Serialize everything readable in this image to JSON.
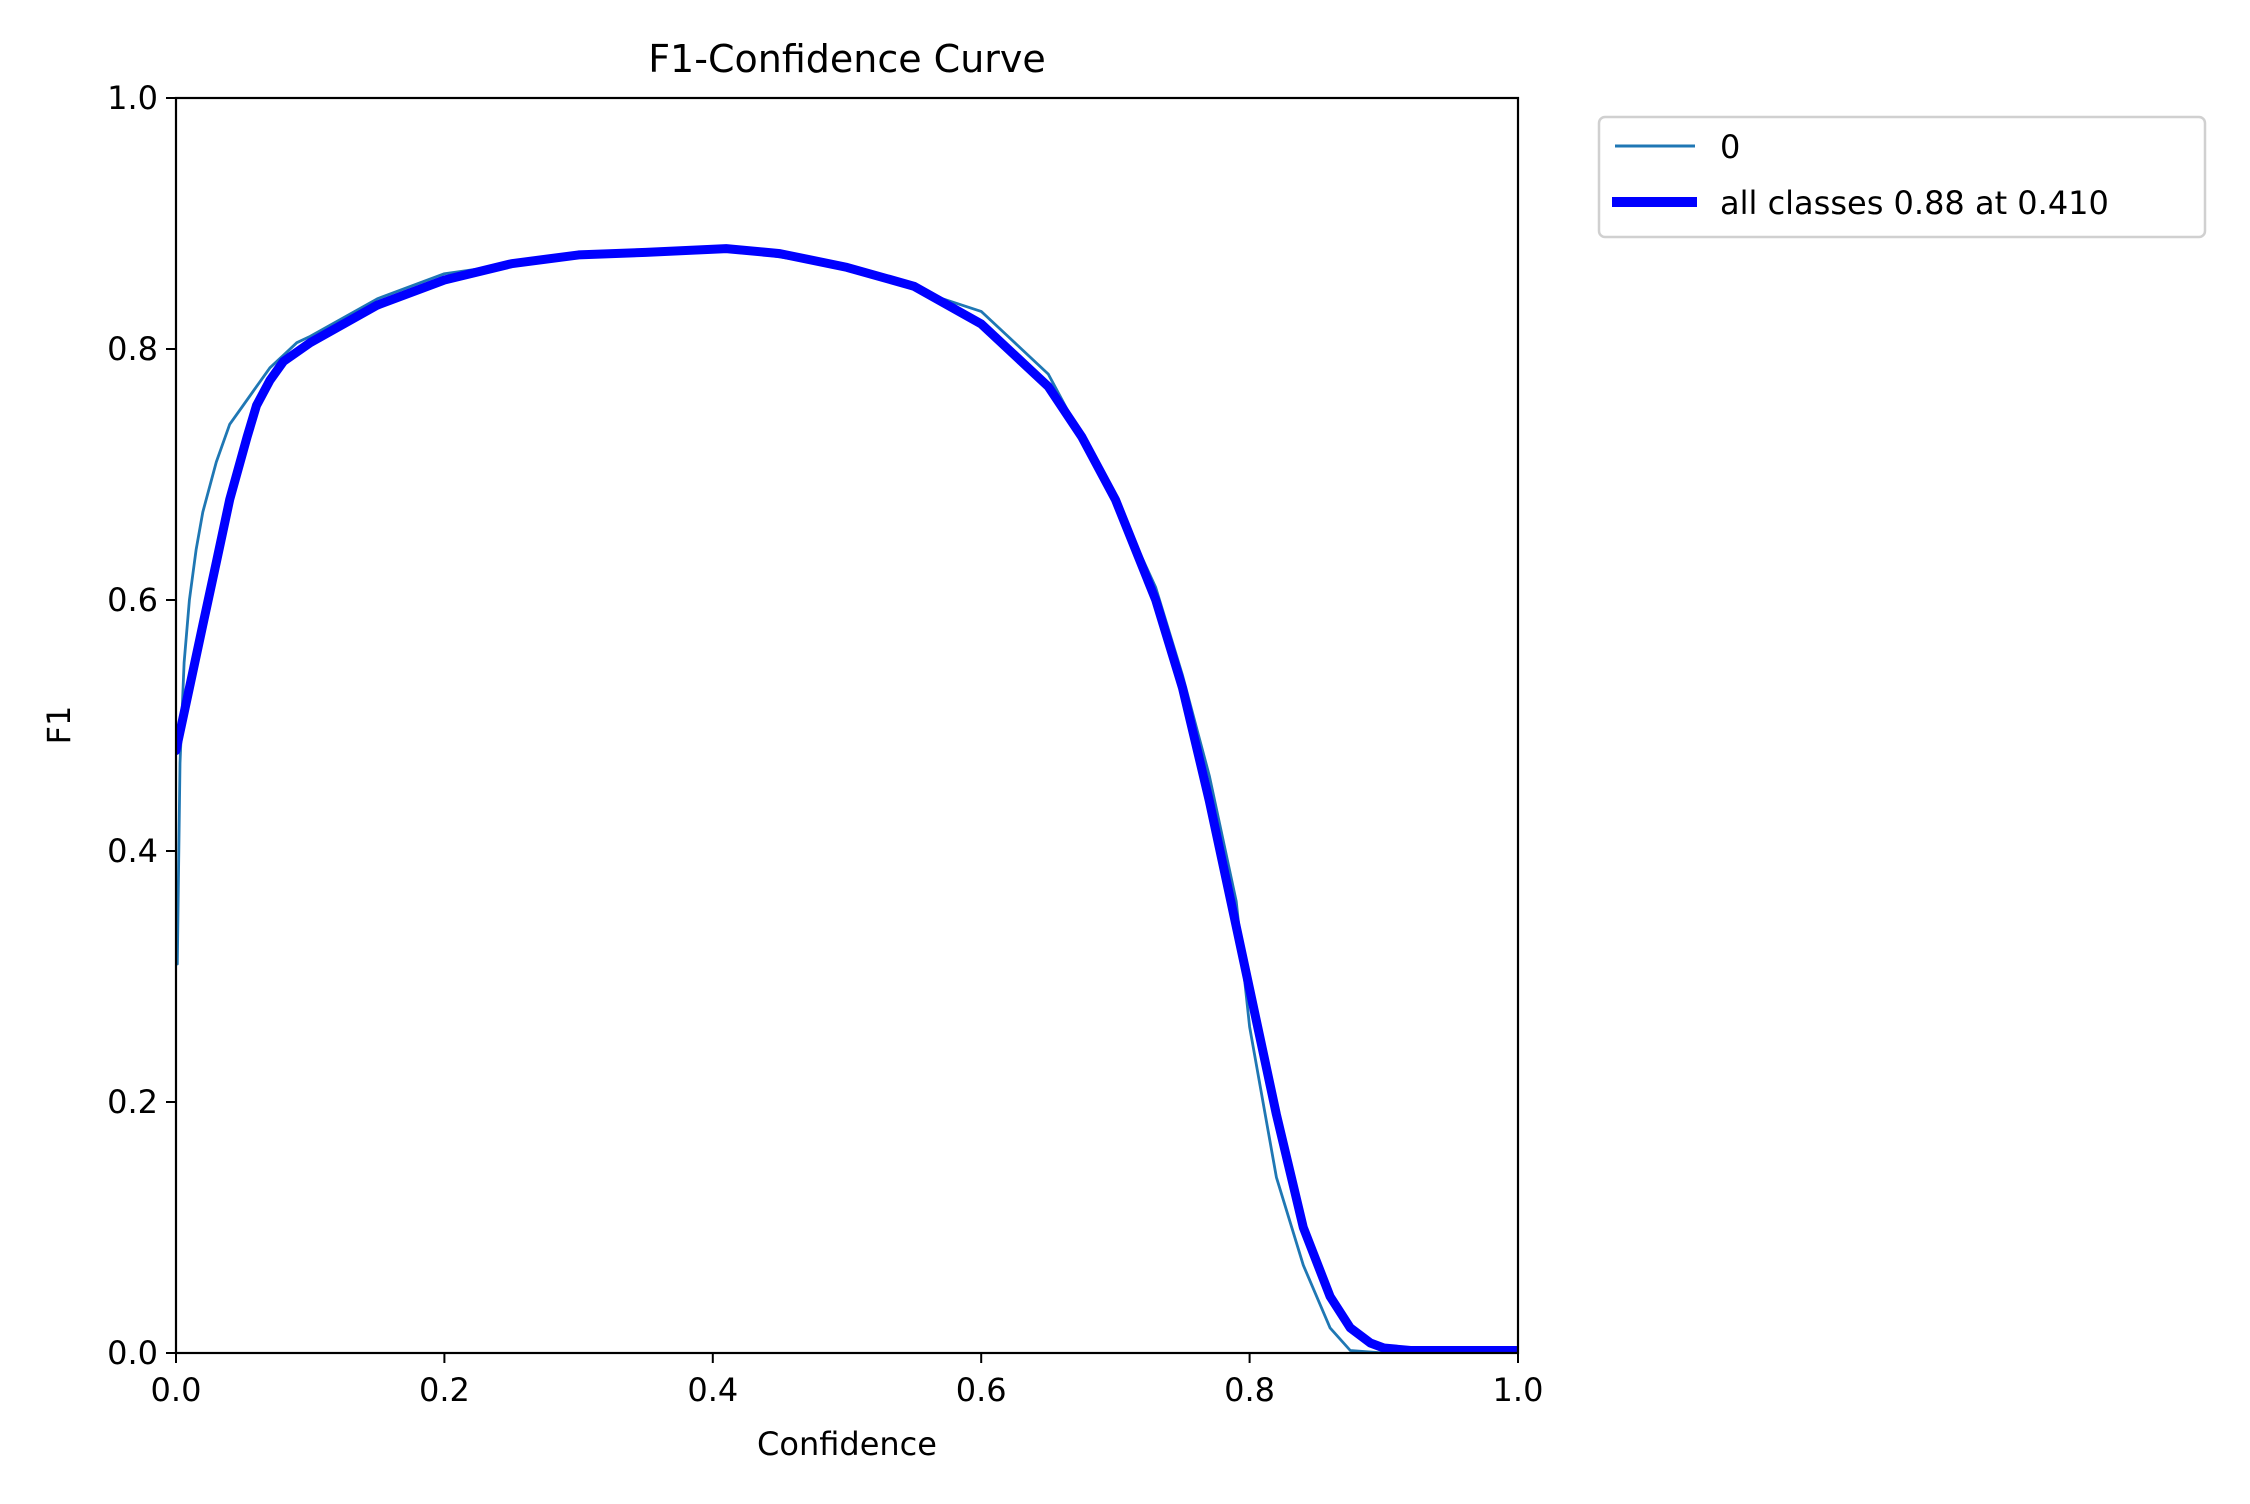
{
  "chart_data": {
    "type": "line",
    "title": "F1-Confidence Curve",
    "xlabel": "Confidence",
    "ylabel": "F1",
    "xlim": [
      0.0,
      1.0
    ],
    "ylim": [
      0.0,
      1.0
    ],
    "xticks": [
      "0.0",
      "0.2",
      "0.4",
      "0.6",
      "0.8",
      "1.0"
    ],
    "yticks": [
      "0.0",
      "0.2",
      "0.4",
      "0.6",
      "0.8",
      "1.0"
    ],
    "grid": false,
    "legend_position": "outside upper right",
    "series": [
      {
        "name": "0",
        "color": "#1f77b4",
        "linewidth": "thin",
        "x": [
          0.001,
          0.003,
          0.006,
          0.01,
          0.015,
          0.02,
          0.03,
          0.04,
          0.05,
          0.06,
          0.07,
          0.08,
          0.09,
          0.1,
          0.15,
          0.2,
          0.3,
          0.41,
          0.5,
          0.6,
          0.62,
          0.65,
          0.675,
          0.7,
          0.73,
          0.75,
          0.77,
          0.79,
          0.8,
          0.82,
          0.84,
          0.86,
          0.875,
          0.9,
          1.0
        ],
        "y": [
          0.31,
          0.47,
          0.55,
          0.6,
          0.64,
          0.67,
          0.71,
          0.74,
          0.755,
          0.77,
          0.785,
          0.795,
          0.805,
          0.81,
          0.84,
          0.86,
          0.875,
          0.88,
          0.865,
          0.83,
          0.81,
          0.78,
          0.73,
          0.68,
          0.61,
          0.54,
          0.46,
          0.36,
          0.26,
          0.14,
          0.07,
          0.02,
          0.002,
          0.0,
          0.0
        ]
      },
      {
        "name": "all classes 0.88 at 0.410",
        "color": "#0000ff",
        "linewidth": "thick",
        "x": [
          0.0,
          0.01,
          0.02,
          0.03,
          0.04,
          0.053,
          0.06,
          0.07,
          0.08,
          0.1,
          0.15,
          0.2,
          0.25,
          0.3,
          0.35,
          0.41,
          0.45,
          0.5,
          0.55,
          0.6,
          0.65,
          0.675,
          0.7,
          0.73,
          0.75,
          0.77,
          0.79,
          0.8,
          0.82,
          0.84,
          0.86,
          0.875,
          0.89,
          0.9,
          0.92,
          1.0
        ],
        "y": [
          0.48,
          0.53,
          0.58,
          0.63,
          0.68,
          0.73,
          0.755,
          0.775,
          0.79,
          0.805,
          0.835,
          0.855,
          0.868,
          0.875,
          0.877,
          0.88,
          0.876,
          0.865,
          0.85,
          0.82,
          0.77,
          0.73,
          0.68,
          0.6,
          0.53,
          0.44,
          0.34,
          0.29,
          0.19,
          0.1,
          0.045,
          0.02,
          0.008,
          0.004,
          0.002,
          0.002
        ]
      }
    ],
    "annotations": {
      "best_f1": 0.88,
      "best_confidence": 0.41
    }
  },
  "legend": {
    "items": [
      {
        "label": "0",
        "color": "#1f77b4"
      },
      {
        "label": "all classes 0.88 at 0.410",
        "color": "#0000ff"
      }
    ]
  }
}
